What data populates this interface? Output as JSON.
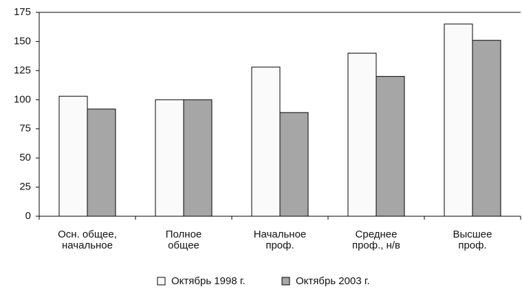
{
  "chart_data": {
    "type": "bar",
    "categories": [
      [
        "Осн. общее,",
        "начальное"
      ],
      [
        "Полное",
        "общее"
      ],
      [
        "Начальное",
        "проф."
      ],
      [
        "Среднее",
        "проф., н/в"
      ],
      [
        "Высшее",
        "проф."
      ]
    ],
    "series": [
      {
        "name": "Октябрь 1998 г.",
        "color": "#fafafa",
        "values": [
          103,
          100,
          128,
          140,
          165
        ]
      },
      {
        "name": "Октябрь 2003 г.",
        "color": "#a6a6a6",
        "values": [
          92,
          100,
          89,
          120,
          151
        ]
      }
    ],
    "ylim": [
      0,
      175
    ],
    "yticks": [
      0,
      25,
      50,
      75,
      100,
      125,
      150,
      175
    ],
    "grid": false,
    "legend": "bottom"
  }
}
